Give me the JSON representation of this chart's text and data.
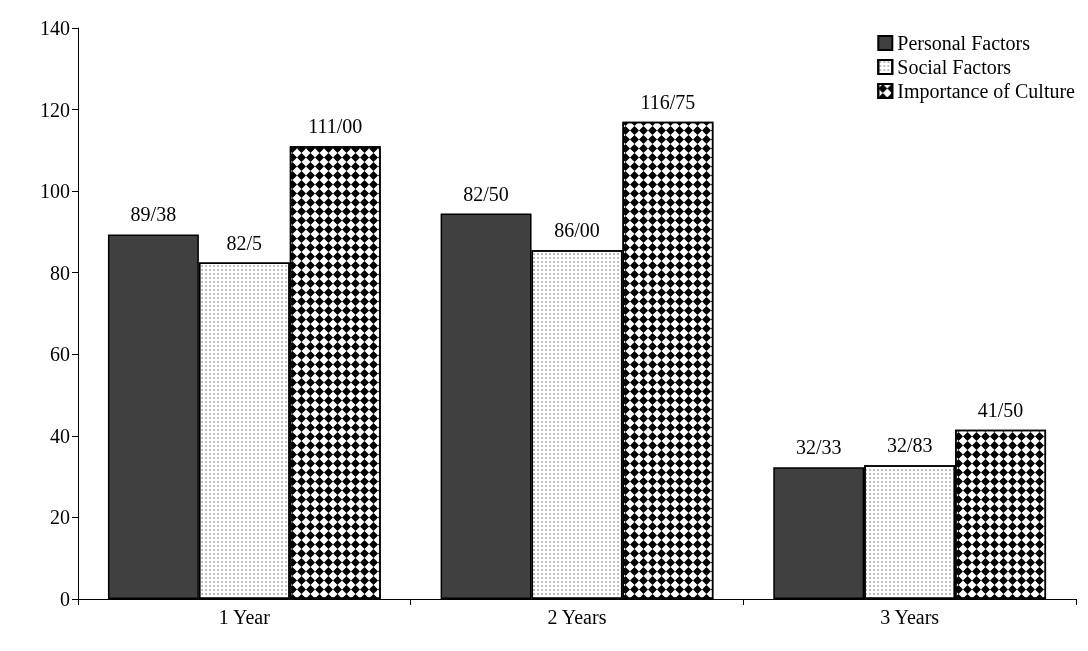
{
  "chart_data": {
    "type": "bar",
    "categories": [
      "1 Year",
      "2 Years",
      "3 Years"
    ],
    "series": [
      {
        "name": "Personal Factors",
        "color": "#404040",
        "values": [
          89.4,
          94.5,
          32.3
        ],
        "value_labels": [
          "89/38",
          "82/50",
          "32/33"
        ]
      },
      {
        "name": "Social Factors",
        "color": "#ffffff",
        "values": [
          82.5,
          85.5,
          32.8
        ],
        "value_labels": [
          "82/5",
          "86/00",
          "32/83"
        ]
      },
      {
        "name": "Importance of Culture",
        "color": "#ffffff",
        "values": [
          111,
          117,
          41.5
        ],
        "value_labels": [
          "111/00",
          "116/75",
          "41/50"
        ]
      }
    ],
    "ylim": [
      0,
      140
    ],
    "yticks": [
      0,
      20,
      40,
      60,
      80,
      100,
      120,
      140
    ],
    "grid": false,
    "legend": "top right"
  }
}
